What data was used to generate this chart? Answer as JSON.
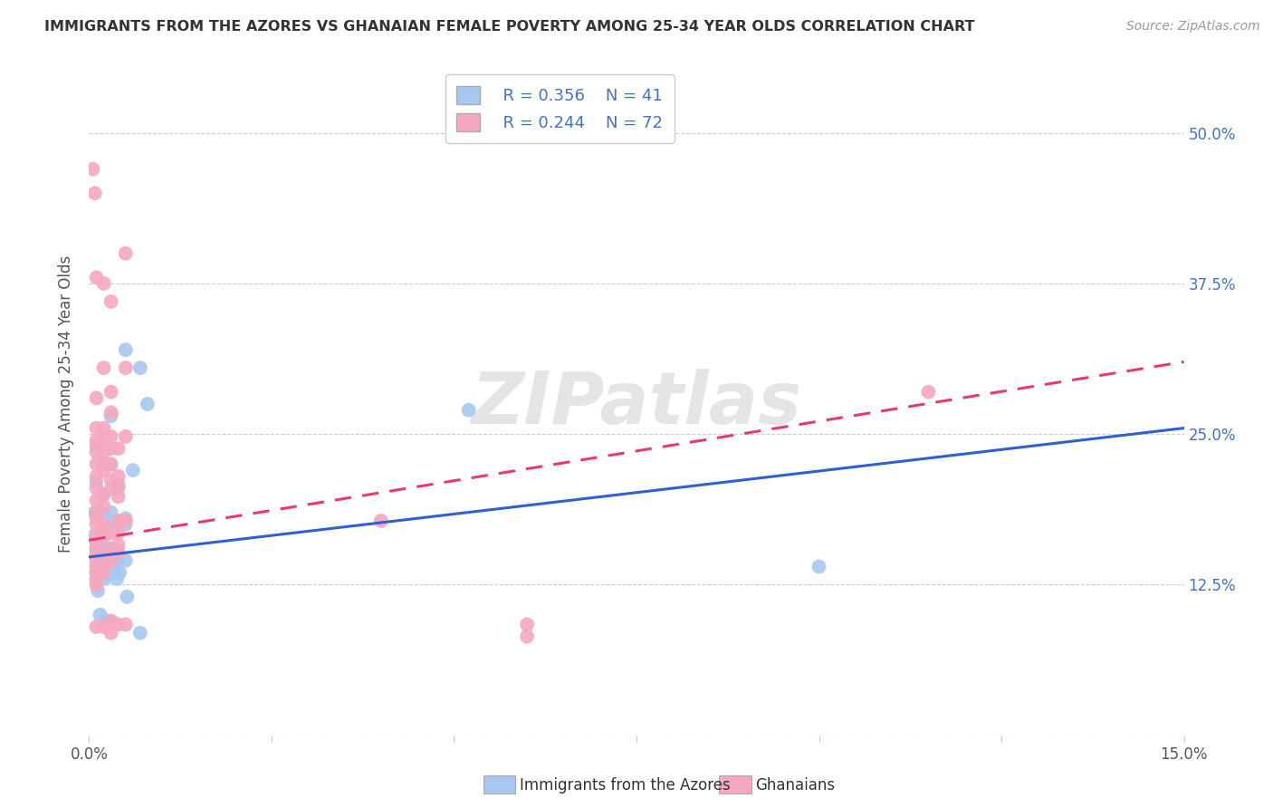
{
  "title": "IMMIGRANTS FROM THE AZORES VS GHANAIAN FEMALE POVERTY AMONG 25-34 YEAR OLDS CORRELATION CHART",
  "source": "Source: ZipAtlas.com",
  "ylabel": "Female Poverty Among 25-34 Year Olds",
  "xlim": [
    0.0,
    0.15
  ],
  "ylim": [
    0.0,
    0.55
  ],
  "x_ticks": [
    0.0,
    0.025,
    0.05,
    0.075,
    0.1,
    0.125,
    0.15
  ],
  "x_tick_labels": [
    "0.0%",
    "",
    "",
    "",
    "",
    "",
    "15.0%"
  ],
  "y_ticks": [
    0.0,
    0.125,
    0.25,
    0.375,
    0.5
  ],
  "y_right_labels": [
    "",
    "12.5%",
    "25.0%",
    "37.5%",
    "50.0%"
  ],
  "legend_blue_r": "R = 0.356",
  "legend_blue_n": "N = 41",
  "legend_pink_r": "R = 0.244",
  "legend_pink_n": "N = 72",
  "legend_blue_label": "Immigrants from the Azores",
  "legend_pink_label": "Ghanaians",
  "blue_color": "#a8c8f0",
  "pink_color": "#f5a8c0",
  "blue_line_color": "#3060d0",
  "pink_line_color": "#e83878",
  "watermark": "ZIPatlas",
  "background_color": "#ffffff",
  "blue_points": [
    [
      0.0005,
      0.165
    ],
    [
      0.0008,
      0.185
    ],
    [
      0.001,
      0.21
    ],
    [
      0.001,
      0.155
    ],
    [
      0.001,
      0.14
    ],
    [
      0.001,
      0.135
    ],
    [
      0.0012,
      0.12
    ],
    [
      0.0012,
      0.15
    ],
    [
      0.0015,
      0.1
    ],
    [
      0.002,
      0.185
    ],
    [
      0.002,
      0.2
    ],
    [
      0.002,
      0.165
    ],
    [
      0.002,
      0.155
    ],
    [
      0.002,
      0.145
    ],
    [
      0.002,
      0.142
    ],
    [
      0.0022,
      0.135
    ],
    [
      0.0022,
      0.13
    ],
    [
      0.0025,
      0.095
    ],
    [
      0.003,
      0.265
    ],
    [
      0.003,
      0.225
    ],
    [
      0.003,
      0.185
    ],
    [
      0.003,
      0.175
    ],
    [
      0.003,
      0.155
    ],
    [
      0.0032,
      0.14
    ],
    [
      0.0035,
      0.135
    ],
    [
      0.0038,
      0.13
    ],
    [
      0.004,
      0.205
    ],
    [
      0.004,
      0.175
    ],
    [
      0.004,
      0.145
    ],
    [
      0.0042,
      0.135
    ],
    [
      0.005,
      0.32
    ],
    [
      0.005,
      0.18
    ],
    [
      0.005,
      0.175
    ],
    [
      0.005,
      0.145
    ],
    [
      0.0052,
      0.115
    ],
    [
      0.006,
      0.22
    ],
    [
      0.007,
      0.305
    ],
    [
      0.007,
      0.085
    ],
    [
      0.008,
      0.275
    ],
    [
      0.052,
      0.27
    ],
    [
      0.1,
      0.14
    ]
  ],
  "pink_points": [
    [
      0.0005,
      0.47
    ],
    [
      0.0008,
      0.45
    ],
    [
      0.001,
      0.38
    ],
    [
      0.001,
      0.28
    ],
    [
      0.001,
      0.255
    ],
    [
      0.001,
      0.245
    ],
    [
      0.001,
      0.24
    ],
    [
      0.001,
      0.235
    ],
    [
      0.001,
      0.225
    ],
    [
      0.001,
      0.215
    ],
    [
      0.001,
      0.205
    ],
    [
      0.001,
      0.195
    ],
    [
      0.001,
      0.185
    ],
    [
      0.001,
      0.18
    ],
    [
      0.001,
      0.175
    ],
    [
      0.001,
      0.165
    ],
    [
      0.001,
      0.16
    ],
    [
      0.001,
      0.155
    ],
    [
      0.001,
      0.15
    ],
    [
      0.001,
      0.145
    ],
    [
      0.001,
      0.14
    ],
    [
      0.001,
      0.135
    ],
    [
      0.001,
      0.13
    ],
    [
      0.001,
      0.125
    ],
    [
      0.001,
      0.09
    ],
    [
      0.002,
      0.375
    ],
    [
      0.002,
      0.305
    ],
    [
      0.002,
      0.255
    ],
    [
      0.002,
      0.248
    ],
    [
      0.002,
      0.242
    ],
    [
      0.002,
      0.235
    ],
    [
      0.002,
      0.225
    ],
    [
      0.002,
      0.22
    ],
    [
      0.002,
      0.2
    ],
    [
      0.002,
      0.19
    ],
    [
      0.002,
      0.175
    ],
    [
      0.002,
      0.165
    ],
    [
      0.002,
      0.15
    ],
    [
      0.002,
      0.142
    ],
    [
      0.002,
      0.135
    ],
    [
      0.002,
      0.09
    ],
    [
      0.003,
      0.36
    ],
    [
      0.003,
      0.285
    ],
    [
      0.003,
      0.268
    ],
    [
      0.003,
      0.248
    ],
    [
      0.003,
      0.238
    ],
    [
      0.003,
      0.225
    ],
    [
      0.003,
      0.212
    ],
    [
      0.003,
      0.205
    ],
    [
      0.003,
      0.168
    ],
    [
      0.003,
      0.155
    ],
    [
      0.003,
      0.145
    ],
    [
      0.003,
      0.095
    ],
    [
      0.003,
      0.085
    ],
    [
      0.004,
      0.238
    ],
    [
      0.004,
      0.215
    ],
    [
      0.004,
      0.208
    ],
    [
      0.004,
      0.198
    ],
    [
      0.004,
      0.178
    ],
    [
      0.004,
      0.168
    ],
    [
      0.004,
      0.158
    ],
    [
      0.004,
      0.152
    ],
    [
      0.004,
      0.092
    ],
    [
      0.005,
      0.4
    ],
    [
      0.005,
      0.305
    ],
    [
      0.005,
      0.248
    ],
    [
      0.005,
      0.178
    ],
    [
      0.005,
      0.092
    ],
    [
      0.04,
      0.178
    ],
    [
      0.06,
      0.092
    ],
    [
      0.06,
      0.082
    ],
    [
      0.115,
      0.285
    ]
  ]
}
